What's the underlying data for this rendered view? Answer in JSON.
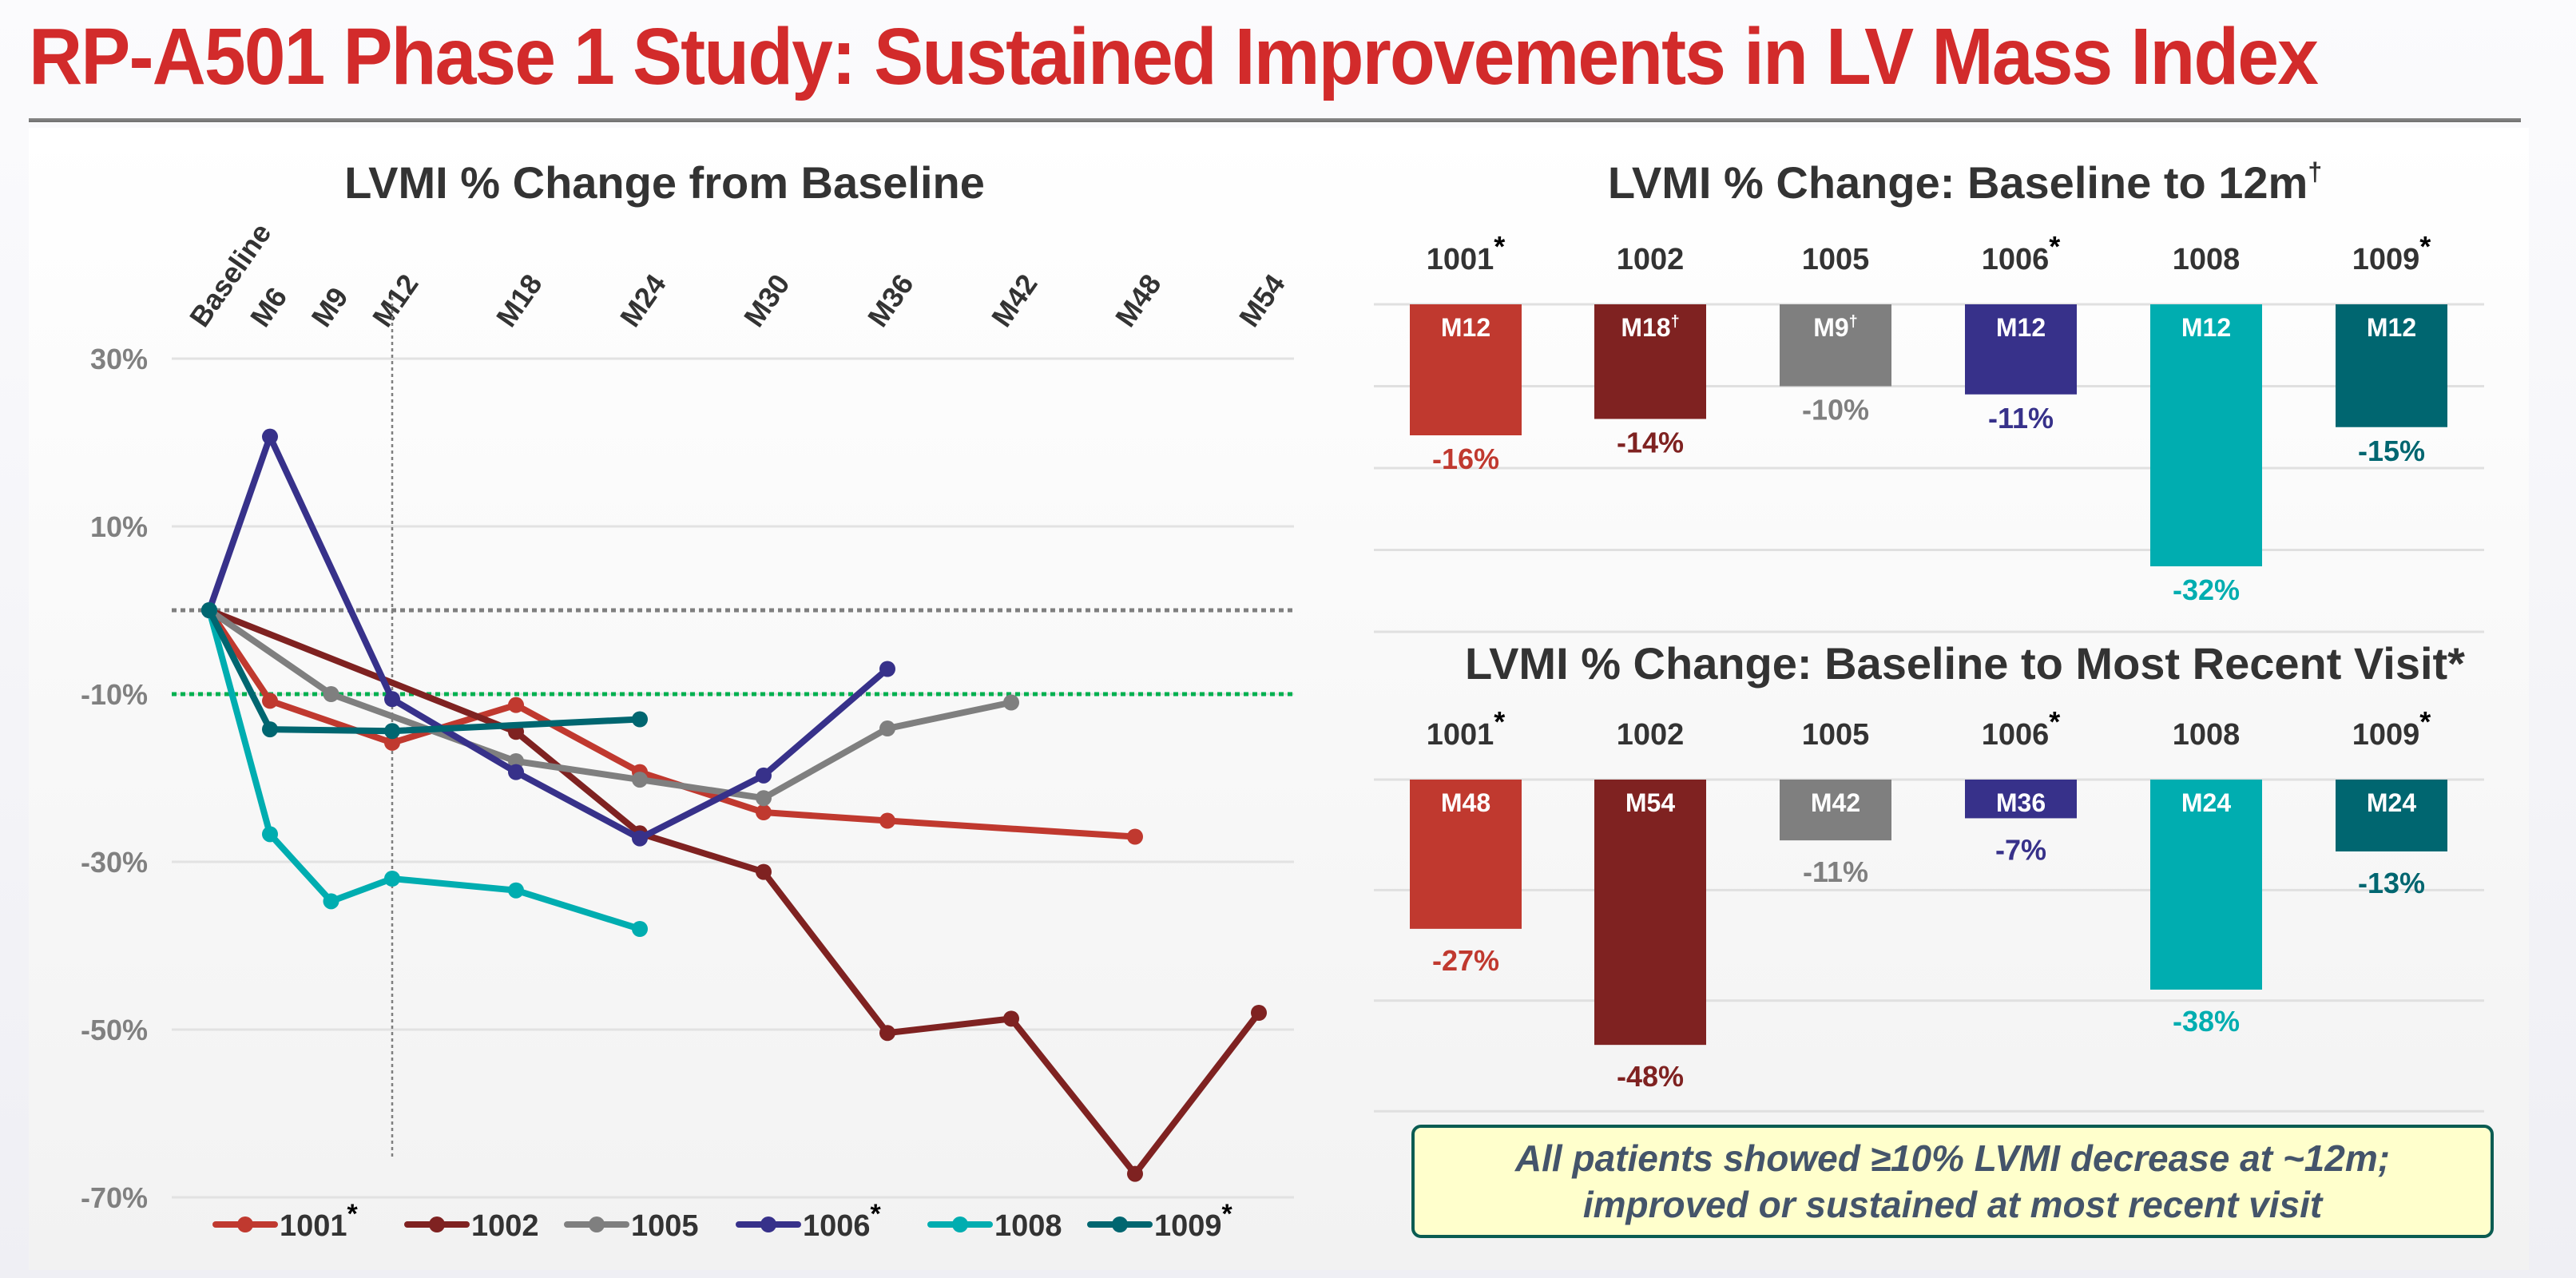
{
  "header": {
    "title": "RP-A501 Phase 1 Study: Sustained Improvements in LV Mass Index"
  },
  "callout": {
    "line1": "All patients showed ≥10% LVMI decrease at ~12m;",
    "line2": "improved or sustained at most recent visit"
  },
  "colors": {
    "title_red": "#d22b2b",
    "1001": "#c0392f",
    "1002": "#7f2221",
    "1005": "#7f7f7f",
    "1006": "#37318a",
    "1008": "#00adb0",
    "1009": "#006670",
    "threshold_green": "#00b050",
    "callout_bg": "#ffffcc",
    "callout_border": "#0b5c52",
    "callout_text": "#44546a"
  },
  "chart_data": [
    {
      "id": "line",
      "type": "line",
      "title": "LVMI % Change from Baseline",
      "xlabel": "",
      "ylabel": "",
      "categories": [
        "Baseline",
        "M6",
        "M9",
        "M12",
        "M18",
        "M24",
        "M30",
        "M36",
        "M42",
        "M48",
        "M54"
      ],
      "x_months": [
        0,
        6,
        9,
        12,
        18,
        24,
        30,
        36,
        42,
        48,
        54
      ],
      "yticks": [
        30,
        10,
        -10,
        -30,
        -50,
        -70
      ],
      "ytick_labels": [
        "30%",
        "10%",
        "-10%",
        "-30%",
        "-50%",
        "-70%"
      ],
      "ylim": [
        -70,
        30
      ],
      "grid": true,
      "reference_lines": [
        {
          "y": 0,
          "style": "dotted",
          "color": "#7f7f7f"
        },
        {
          "y": -10,
          "style": "dotted",
          "color": "#00b050"
        },
        {
          "x": "M12",
          "style": "dotted",
          "color": "#7f7f7f"
        }
      ],
      "legend": "bottom",
      "series": [
        {
          "name": "1001",
          "marker_note": "*",
          "points": [
            [
              "Baseline",
              0
            ],
            [
              "M6",
              -10.8
            ],
            [
              "M12",
              -15.8
            ],
            [
              "M18",
              -11.3
            ],
            [
              "M24",
              -19.3
            ],
            [
              "M30",
              -24.1
            ],
            [
              "M36",
              -25.1
            ],
            [
              "M48",
              -27
            ]
          ]
        },
        {
          "name": "1002",
          "marker_note": "",
          "points": [
            [
              "Baseline",
              0
            ],
            [
              "M18",
              -14.5
            ],
            [
              "M24",
              -26.6
            ],
            [
              "M30",
              -31.2
            ],
            [
              "M36",
              -50.4
            ],
            [
              "M42",
              -48.7
            ],
            [
              "M48",
              -67.2
            ],
            [
              "M54",
              -48
            ]
          ]
        },
        {
          "name": "1005",
          "marker_note": "",
          "points": [
            [
              "Baseline",
              0
            ],
            [
              "M9",
              -10
            ],
            [
              "M18",
              -18
            ],
            [
              "M24",
              -20.2
            ],
            [
              "M30",
              -22.4
            ],
            [
              "M36",
              -14.1
            ],
            [
              "M42",
              -11
            ]
          ]
        },
        {
          "name": "1006",
          "marker_note": "*",
          "points": [
            [
              "Baseline",
              0
            ],
            [
              "M6",
              20.7
            ],
            [
              "M12",
              -10.6
            ],
            [
              "M18",
              -19.3
            ],
            [
              "M24",
              -27.2
            ],
            [
              "M30",
              -19.7
            ],
            [
              "M36",
              -7
            ]
          ]
        },
        {
          "name": "1008",
          "marker_note": "",
          "points": [
            [
              "Baseline",
              0
            ],
            [
              "M6",
              -26.7
            ],
            [
              "M9",
              -34.7
            ],
            [
              "M12",
              -32
            ],
            [
              "M18",
              -33.4
            ],
            [
              "M24",
              -38
            ]
          ]
        },
        {
          "name": "1009",
          "marker_note": "*",
          "points": [
            [
              "Baseline",
              0
            ],
            [
              "M6",
              -14.2
            ],
            [
              "M12",
              -14.4
            ],
            [
              "M24",
              -13
            ]
          ]
        }
      ]
    },
    {
      "id": "bar12",
      "type": "bar",
      "title": "LVMI % Change: Baseline to 12m",
      "title_note": "†",
      "categories": [
        "1001",
        "1002",
        "1005",
        "1006",
        "1008",
        "1009"
      ],
      "category_notes": [
        "*",
        "",
        "",
        "*",
        "",
        "*"
      ],
      "values": [
        -16,
        -14,
        -10,
        -11,
        -32,
        -15
      ],
      "value_labels": [
        "-16%",
        "-14%",
        "-10%",
        "-11%",
        "-32%",
        "-15%"
      ],
      "visit_labels": [
        "M12",
        "M18",
        "M9",
        "M12",
        "M12",
        "M12"
      ],
      "visit_notes": [
        "",
        "†",
        "†",
        "",
        "",
        ""
      ],
      "ylim": [
        -40,
        0
      ],
      "grid_step": 10,
      "grid": true
    },
    {
      "id": "barRecent",
      "type": "bar",
      "title": "LVMI % Change: Baseline to Most Recent Visit",
      "title_note": "*",
      "categories": [
        "1001",
        "1002",
        "1005",
        "1006",
        "1008",
        "1009"
      ],
      "category_notes": [
        "*",
        "",
        "",
        "*",
        "",
        "*"
      ],
      "values": [
        -27,
        -48,
        -11,
        -7,
        -38,
        -13
      ],
      "value_labels": [
        "-27%",
        "-48%",
        "-11%",
        "-7%",
        "-38%",
        "-13%"
      ],
      "visit_labels": [
        "M48",
        "M54",
        "M42",
        "M36",
        "M24",
        "M24"
      ],
      "visit_notes": [
        "",
        "",
        "",
        "",
        "",
        ""
      ],
      "ylim": [
        -60,
        0
      ],
      "grid_step": 20,
      "grid": true
    }
  ]
}
